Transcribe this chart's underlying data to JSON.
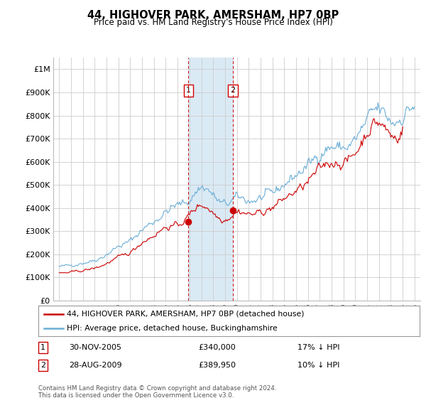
{
  "title": "44, HIGHOVER PARK, AMERSHAM, HP7 0BP",
  "subtitle": "Price paid vs. HM Land Registry's House Price Index (HPI)",
  "footer": "Contains HM Land Registry data © Crown copyright and database right 2024.\nThis data is licensed under the Open Government Licence v3.0.",
  "legend_line1": "44, HIGHOVER PARK, AMERSHAM, HP7 0BP (detached house)",
  "legend_line2": "HPI: Average price, detached house, Buckinghamshire",
  "transaction1_date": "30-NOV-2005",
  "transaction1_price": "£340,000",
  "transaction1_hpi": "17% ↓ HPI",
  "transaction2_date": "28-AUG-2009",
  "transaction2_price": "£389,950",
  "transaction2_hpi": "10% ↓ HPI",
  "hpi_color": "#6baed6",
  "price_color": "#cc0000",
  "highlight_color": "#daeaf5",
  "vline_color": "#cc0000",
  "background_color": "#ffffff",
  "grid_color": "#cccccc",
  "ylim": [
    0,
    1050000
  ],
  "yticks": [
    0,
    100000,
    200000,
    300000,
    400000,
    500000,
    600000,
    700000,
    800000,
    900000,
    1000000
  ],
  "ytick_labels": [
    "£0",
    "£100K",
    "£200K",
    "£300K",
    "£400K",
    "£500K",
    "£600K",
    "£700K",
    "£800K",
    "£900K",
    "£1M"
  ],
  "hpi_annual_years": [
    1995,
    1996,
    1997,
    1998,
    1999,
    2000,
    2001,
    2002,
    2003,
    2004,
    2005,
    2006,
    2007,
    2008,
    2009,
    2010,
    2011,
    2012,
    2013,
    2014,
    2015,
    2016,
    2017,
    2018,
    2019,
    2020,
    2021,
    2022,
    2023,
    2024,
    2025
  ],
  "hpi_annual_values": [
    147000,
    153000,
    163000,
    175000,
    200000,
    233000,
    258000,
    306000,
    342000,
    382000,
    412000,
    435000,
    490000,
    455000,
    415000,
    443000,
    432000,
    442000,
    463000,
    503000,
    542000,
    583000,
    635000,
    663000,
    660000,
    695000,
    775000,
    825000,
    775000,
    800000,
    840000
  ],
  "price_annual_years": [
    1995,
    1996,
    1997,
    1998,
    1999,
    2000,
    2001,
    2002,
    2003,
    2004,
    2005,
    2006,
    2007,
    2008,
    2009,
    2010,
    2011,
    2012,
    2013,
    2014,
    2015,
    2016,
    2017,
    2018,
    2019,
    2020,
    2021,
    2022,
    2023,
    2024
  ],
  "price_annual_values": [
    118000,
    122000,
    130000,
    140000,
    160000,
    186000,
    208000,
    252000,
    282000,
    316000,
    326000,
    370000,
    413000,
    380000,
    352000,
    384000,
    374000,
    382000,
    402000,
    440000,
    472000,
    512000,
    568000,
    598000,
    597000,
    638000,
    728000,
    768000,
    715000,
    748000
  ],
  "transaction1_x": 2005.917,
  "transaction1_y": 340000,
  "transaction2_x": 2009.667,
  "transaction2_y": 389950,
  "highlight_xmin": 2005.917,
  "highlight_xmax": 2009.667,
  "xlim": [
    1994.5,
    2025.5
  ],
  "xticks": [
    1995,
    1996,
    1997,
    1998,
    1999,
    2000,
    2001,
    2002,
    2003,
    2004,
    2005,
    2006,
    2007,
    2008,
    2009,
    2010,
    2011,
    2012,
    2013,
    2014,
    2015,
    2016,
    2017,
    2018,
    2019,
    2020,
    2021,
    2022,
    2023,
    2024,
    2025
  ],
  "noise_seed": 42,
  "hpi_noise_scale": 0.018,
  "price_noise_scale": 0.015
}
